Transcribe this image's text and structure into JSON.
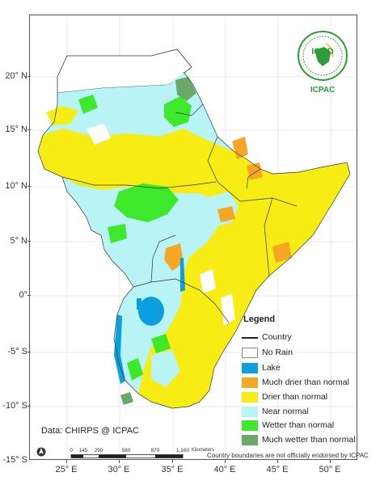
{
  "map": {
    "lat_labels": [
      "20° N",
      "15° N",
      "10° N",
      "5° N",
      "0°",
      "-5° S",
      "-10° S",
      "-15° S"
    ],
    "lon_labels": [
      "25° E",
      "30° E",
      "35° E",
      "40° E",
      "45° E",
      "50° E"
    ]
  },
  "legend": {
    "title": "Legend",
    "items": [
      {
        "label": "Country",
        "kind": "line",
        "color": "#222222"
      },
      {
        "label": "No Rain",
        "color": "#ffffff"
      },
      {
        "label": "Lake",
        "color": "#0aa0e0"
      },
      {
        "label": "Much drier than normal",
        "color": "#f5a623"
      },
      {
        "label": "Drier than normal",
        "color": "#f7ec14"
      },
      {
        "label": "Near normal",
        "color": "#b8f3f5"
      },
      {
        "label": "Wetter than normal",
        "color": "#3ee82a"
      },
      {
        "label": "Much wetter than normal",
        "color": "#6aa86a"
      }
    ]
  },
  "source": "Data: CHIRPS @ ICPAC",
  "scale_bar": {
    "labels": [
      "0",
      "145",
      "290",
      "580",
      "870",
      "1,160"
    ],
    "unit": "Kilometers"
  },
  "disclaimer": "Country boundaries are not officially endorsed by ICPAC",
  "logo": {
    "name": "IGAD",
    "org": "ICPAC"
  },
  "colors": {
    "frame": "#555555",
    "background": "#ffffff"
  }
}
